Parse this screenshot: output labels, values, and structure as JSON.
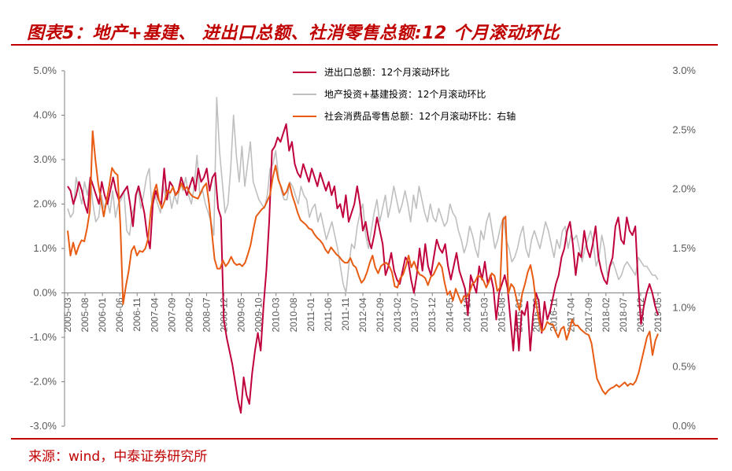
{
  "title": "图表5：地产+基建、 进出口总额、社消零售总额:12 个月滚动环比",
  "source": "来源：wind，中泰证券研究所",
  "colors": {
    "accent": "#c00000",
    "export_import": "#c0003c",
    "property_infra": "#bfbfbf",
    "retail": "#e85b12"
  },
  "chart_data": {
    "type": "line",
    "title": "",
    "xlabel": "",
    "ylabel": "",
    "ylim": [
      -3.0,
      5.0
    ],
    "y2lim": [
      0.0,
      3.0
    ],
    "left_ticks": [
      "5.0%",
      "4.0%",
      "3.0%",
      "2.0%",
      "1.0%",
      "0.0%",
      "-1.0%",
      "-2.0%",
      "-3.0%"
    ],
    "right_ticks": [
      "3.0%",
      "2.5%",
      "2.0%",
      "1.5%",
      "1.0%",
      "0.5%",
      "0.0%"
    ],
    "x_ticks": [
      "2005-03",
      "2005-08",
      "2006-01",
      "2006-06",
      "2006-11",
      "2007-04",
      "2007-09",
      "2008-02",
      "2008-07",
      "2008-12",
      "2009-05",
      "2009-10",
      "2010-03",
      "2010-08",
      "2011-01",
      "2011-06",
      "2011-11",
      "2012-04",
      "2012-09",
      "2013-02",
      "2013-07",
      "2013-12",
      "2014-05",
      "2014-10",
      "2015-03",
      "2015-08",
      "2016-01",
      "2016-06",
      "2016-11",
      "2017-04",
      "2017-09",
      "2018-02",
      "2018-07",
      "2018-12",
      "2019-05"
    ],
    "legend_position": "top-center",
    "grid": false,
    "series": [
      {
        "name": "进出口总额：12个月滚动环比",
        "axis": "left",
        "values": [
          2.4,
          2.3,
          2.0,
          2.2,
          2.5,
          2.3,
          2.0,
          1.8,
          2.6,
          2.4,
          2.2,
          2.0,
          2.5,
          2.2,
          2.0,
          2.3,
          2.6,
          2.3,
          2.1,
          2.2,
          2.3,
          2.4,
          2.0,
          1.5,
          2.2,
          2.4,
          2.1,
          1.8,
          1.3,
          1.0,
          2.0,
          2.3,
          2.1,
          2.0,
          2.8,
          2.1,
          2.5,
          2.4,
          2.2,
          2.3,
          2.6,
          2.4,
          2.2,
          2.4,
          2.6,
          2.3,
          2.8,
          2.5,
          2.6,
          2.8,
          2.3,
          2.6,
          2.7,
          1.9,
          1.7,
          -0.6,
          -1.0,
          -1.3,
          -1.6,
          -2.0,
          -2.4,
          -2.7,
          -1.9,
          -2.3,
          -2.5,
          -1.8,
          -1.3,
          -0.9,
          -1.3,
          -0.3,
          0.5,
          1.6,
          3.2,
          3.3,
          3.5,
          3.4,
          3.6,
          3.8,
          3.2,
          3.4,
          2.9,
          2.7,
          2.6,
          2.9,
          2.7,
          2.5,
          2.8,
          2.6,
          2.4,
          2.7,
          2.5,
          2.3,
          2.5,
          2.2,
          2.4,
          1.9,
          2.0,
          1.7,
          2.2,
          1.6,
          1.8,
          2.0,
          2.4,
          2.0,
          1.4,
          1.6,
          1.2,
          1.0,
          1.3,
          1.7,
          1.4,
          1.1,
          0.4,
          0.6,
          0.9,
          0.5,
          0.3,
          0.2,
          0.5,
          0.8,
          0.7,
          0.3,
          0.0,
          0.4,
          1.0,
          0.5,
          1.1,
          0.6,
          0.4,
          0.8,
          1.2,
          1.0,
          0.9,
          1.1,
          0.6,
          0.3,
          0.6,
          0.9,
          0.5,
          0.3,
          0.1,
          -0.5,
          0.4,
          0.2,
          0.0,
          0.6,
          0.3,
          0.7,
          0.2,
          0.4,
          0.1,
          -0.6,
          0.0,
          0.2,
          0.4,
          0.1,
          -0.6,
          -1.3,
          -0.4,
          -1.3,
          -0.4,
          -0.5,
          -0.2,
          -1.3,
          -0.5,
          0.0,
          -0.2,
          -0.9,
          -0.2,
          -0.6,
          -0.4,
          -0.1,
          0.2,
          0.4,
          0.8,
          1.0,
          1.4,
          1.6,
          1.1,
          0.4,
          0.9,
          0.8,
          1.4,
          1.0,
          0.8,
          1.1,
          1.5,
          0.8,
          0.5,
          0.3,
          0.2,
          0.6,
          0.8,
          1.5,
          1.7,
          1.2,
          1.1,
          1.7,
          1.4,
          1.3,
          1.5,
          0.2,
          -0.7,
          -0.3,
          0.0,
          0.2,
          0.0,
          -0.3,
          -0.5
        ],
        "color": "#c0003c"
      },
      {
        "name": "地产投资+基建投资：12个月滚动环比",
        "axis": "left",
        "values": [
          1.9,
          1.7,
          1.8,
          2.6,
          2.3,
          2.0,
          2.5,
          2.2,
          2.6,
          2.0,
          1.6,
          1.7,
          2.2,
          1.9,
          2.1,
          1.8,
          2.3,
          1.7,
          2.0,
          2.1,
          2.3,
          1.4,
          1.3,
          1.8,
          2.0,
          2.4,
          1.9,
          2.2,
          2.6,
          2.8,
          1.9,
          2.2,
          2.0,
          1.8,
          2.4,
          2.1,
          2.3,
          1.9,
          2.2,
          2.0,
          2.5,
          2.3,
          2.6,
          2.2,
          2.0,
          2.4,
          3.1,
          2.2,
          2.3,
          2.0,
          1.8,
          1.6,
          1.3,
          4.4,
          3.2,
          2.5,
          1.8,
          2.0,
          2.8,
          4.0,
          3.1,
          2.5,
          3.3,
          2.4,
          2.9,
          3.4,
          2.5,
          2.3,
          2.1,
          2.0,
          1.9,
          2.2,
          2.8,
          2.9,
          3.2,
          2.6,
          2.3,
          2.1,
          2.1,
          2.5,
          2.4,
          2.2,
          2.0,
          2.4,
          2.2,
          2.1,
          1.7,
          1.9,
          2.0,
          1.6,
          1.8,
          1.5,
          1.2,
          1.4,
          1.6,
          1.3,
          1.0,
          0.6,
          0.2,
          0.0,
          0.6,
          1.1,
          1.0,
          1.5,
          1.8,
          2.0,
          1.3,
          1.0,
          1.4,
          1.8,
          2.1,
          1.6,
          1.9,
          2.2,
          1.7,
          2.0,
          2.4,
          2.1,
          1.8,
          2.0,
          2.3,
          2.0,
          1.6,
          2.2,
          1.9,
          2.4,
          2.1,
          1.8,
          1.6,
          2.0,
          1.7,
          1.6,
          1.9,
          1.7,
          1.5,
          1.6,
          2.0,
          1.8,
          1.7,
          1.4,
          1.2,
          0.9,
          1.1,
          1.5,
          1.3,
          1.0,
          0.8,
          1.4,
          1.2,
          1.6,
          1.8,
          1.4,
          1.0,
          1.2,
          1.5,
          1.7,
          1.2,
          1.0,
          0.7,
          0.8,
          1.0,
          1.3,
          1.5,
          1.0,
          0.8,
          1.2,
          1.4,
          1.2,
          1.0,
          1.3,
          1.6,
          1.4,
          1.1,
          0.8,
          1.2,
          1.0,
          1.4,
          1.5,
          1.0,
          1.3,
          1.2,
          1.3,
          1.0,
          0.7,
          1.0,
          1.2,
          1.4,
          1.1,
          0.6,
          0.8,
          1.3,
          1.0,
          0.4,
          0.6,
          0.7,
          0.5,
          0.3,
          0.4,
          0.6,
          0.7,
          0.6,
          0.5,
          0.4,
          0.8,
          0.7,
          0.6,
          0.6,
          0.5,
          0.4,
          0.4,
          0.3
        ],
        "color": "#bfbfbf"
      },
      {
        "name": "社会消费品零售总额：12个月滚动环比：右轴",
        "axis": "right",
        "values": [
          1.65,
          1.44,
          1.55,
          1.45,
          1.52,
          1.57,
          1.56,
          1.67,
          1.82,
          2.49,
          2.25,
          2.05,
          1.91,
          1.77,
          1.9,
          2.03,
          2.18,
          2.14,
          2.12,
          1.7,
          1.03,
          1.18,
          1.31,
          1.48,
          1.52,
          1.44,
          1.48,
          1.47,
          1.5,
          1.58,
          1.82,
          1.97,
          2.04,
          1.9,
          1.84,
          1.9,
          1.99,
          1.97,
          2.02,
          1.95,
          1.98,
          2.05,
          2.0,
          2.02,
          1.97,
          1.94,
          1.93,
          1.92,
          1.97,
          2.02,
          2.05,
          1.88,
          1.64,
          1.41,
          1.33,
          1.33,
          1.4,
          1.35,
          1.38,
          1.43,
          1.38,
          1.36,
          1.37,
          1.35,
          1.38,
          1.45,
          1.53,
          1.66,
          1.77,
          1.8,
          1.83,
          1.85,
          1.9,
          1.95,
          2.1,
          2.2,
          2.08,
          2.02,
          1.95,
          1.98,
          2.05,
          1.95,
          1.88,
          1.8,
          1.74,
          1.72,
          1.7,
          1.67,
          1.66,
          1.62,
          1.59,
          1.57,
          1.54,
          1.49,
          1.46,
          1.51,
          1.48,
          1.45,
          1.43,
          1.4,
          1.38,
          1.38,
          1.42,
          1.36,
          1.34,
          1.27,
          1.21,
          1.24,
          1.3,
          1.38,
          1.44,
          1.34,
          1.29,
          1.35,
          1.37,
          1.38,
          1.35,
          1.3,
          1.18,
          1.17,
          1.25,
          1.28,
          1.35,
          1.44,
          1.34,
          1.39,
          1.32,
          1.28,
          1.27,
          1.25,
          1.19,
          1.26,
          1.28,
          1.33,
          1.38,
          1.34,
          1.21,
          1.11,
          1.14,
          1.06,
          1.16,
          1.1,
          1.04,
          1.1,
          1.09,
          1.13,
          1.2,
          1.22,
          1.27,
          1.26,
          1.23,
          1.17,
          1.22,
          1.29,
          1.27,
          1.14,
          1.17,
          1.74,
          1.77,
          1.12,
          1.2,
          1.17,
          1.07,
          0.98,
          1.12,
          1.2,
          1.3,
          1.36,
          1.24,
          1.04,
          0.9,
          0.8,
          0.82,
          0.88,
          0.86,
          0.86,
          0.8,
          0.75,
          0.82,
          0.84,
          0.73,
          0.8,
          0.9,
          0.85,
          0.85,
          0.82,
          0.8,
          0.78,
          0.77,
          0.7,
          0.55,
          0.4,
          0.35,
          0.3,
          0.27,
          0.3,
          0.32,
          0.33,
          0.35,
          0.33,
          0.35,
          0.37,
          0.34,
          0.36,
          0.35,
          0.38,
          0.45,
          0.55,
          0.65,
          0.75,
          0.8,
          0.6,
          0.72,
          0.78
        ],
        "color": "#e85b12"
      }
    ]
  }
}
